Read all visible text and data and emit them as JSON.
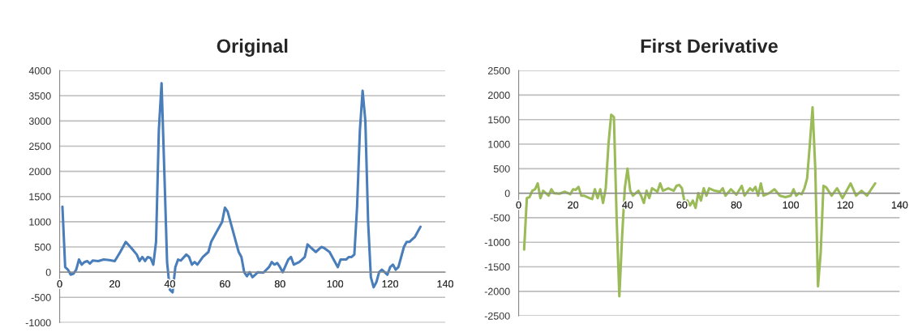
{
  "chart_data": [
    {
      "type": "line",
      "title": "Original",
      "color": "#4a7ebb",
      "grid": "y",
      "xlim": [
        0,
        140
      ],
      "xticks": [
        0,
        20,
        40,
        60,
        80,
        100,
        120,
        140
      ],
      "ylim": [
        -1000,
        4000
      ],
      "yticks": [
        -1000,
        -500,
        0,
        500,
        1000,
        1500,
        2000,
        2500,
        3000,
        3500,
        4000
      ],
      "x": [
        1,
        2,
        3,
        4,
        5,
        6,
        7,
        8,
        9,
        10,
        11,
        12,
        14,
        16,
        18,
        20,
        22,
        24,
        26,
        28,
        29,
        30,
        31,
        32,
        33,
        34,
        35,
        36,
        37,
        38,
        39,
        40,
        41,
        42,
        43,
        44,
        46,
        47,
        48,
        49,
        50,
        52,
        54,
        55,
        57,
        59,
        60,
        61,
        63,
        64,
        65,
        66,
        67,
        68,
        69,
        70,
        71,
        72,
        74,
        76,
        77,
        78,
        79,
        80,
        81,
        83,
        84,
        85,
        87,
        88,
        89,
        90,
        91,
        93,
        95,
        96,
        98,
        100,
        101,
        102,
        104,
        105,
        106,
        107,
        108,
        109,
        110,
        111,
        112,
        113,
        114,
        115,
        116,
        117,
        118,
        119,
        120,
        121,
        122,
        123,
        124,
        125,
        126,
        127,
        128,
        129,
        130,
        131
      ],
      "values": [
        1300,
        100,
        50,
        -50,
        -30,
        50,
        250,
        150,
        200,
        220,
        170,
        230,
        220,
        250,
        240,
        220,
        400,
        600,
        480,
        350,
        220,
        300,
        220,
        300,
        280,
        150,
        600,
        2800,
        3750,
        2000,
        200,
        -350,
        -400,
        100,
        250,
        230,
        350,
        300,
        150,
        200,
        150,
        300,
        400,
        600,
        800,
        1000,
        1280,
        1200,
        800,
        600,
        400,
        300,
        0,
        -80,
        0,
        -100,
        -50,
        0,
        -10,
        100,
        200,
        150,
        180,
        100,
        0,
        250,
        300,
        150,
        200,
        250,
        300,
        550,
        500,
        400,
        500,
        480,
        400,
        200,
        100,
        250,
        250,
        300,
        300,
        350,
        1300,
        2800,
        3600,
        3000,
        1000,
        -100,
        -300,
        -200,
        0,
        50,
        0,
        -50,
        100,
        150,
        50,
        100,
        300,
        500,
        600,
        600,
        650,
        700,
        800,
        900
      ]
    },
    {
      "type": "line",
      "title": "First Derivative",
      "color": "#9bbb59",
      "grid": "y",
      "xlim": [
        0,
        140
      ],
      "xticks": [
        0,
        20,
        40,
        60,
        80,
        100,
        120,
        140
      ],
      "ylim": [
        -2500,
        2500
      ],
      "yticks": [
        -2500,
        -2000,
        -1500,
        -1000,
        -500,
        0,
        500,
        1000,
        1500,
        2000,
        2500
      ],
      "x": [
        2,
        3,
        4,
        5,
        6,
        7,
        8,
        9,
        10,
        11,
        12,
        13,
        15,
        17,
        19,
        20,
        21,
        22,
        23,
        24,
        26,
        27,
        28,
        29,
        30,
        31,
        32,
        33,
        34,
        35,
        36,
        37,
        38,
        39,
        40,
        41,
        42,
        44,
        45,
        46,
        47,
        48,
        49,
        51,
        52,
        53,
        55,
        57,
        58,
        59,
        60,
        61,
        62,
        63,
        64,
        65,
        66,
        67,
        68,
        69,
        70,
        72,
        74,
        75,
        76,
        78,
        80,
        82,
        83,
        85,
        86,
        87,
        88,
        89,
        90,
        92,
        94,
        96,
        98,
        100,
        101,
        102,
        103,
        104,
        105,
        106,
        107,
        108,
        109,
        110,
        111,
        112,
        113,
        115,
        117,
        119,
        120,
        122,
        124,
        126,
        128,
        131
      ],
      "values": [
        -1150,
        -100,
        -80,
        50,
        80,
        200,
        -100,
        50,
        0,
        -50,
        80,
        0,
        -10,
        30,
        -20,
        80,
        70,
        130,
        -50,
        -50,
        -100,
        -120,
        80,
        -100,
        80,
        -200,
        100,
        1000,
        1600,
        1550,
        -500,
        -2100,
        -900,
        100,
        500,
        50,
        -50,
        50,
        -50,
        -200,
        50,
        -100,
        100,
        30,
        200,
        50,
        100,
        50,
        150,
        170,
        100,
        -200,
        -150,
        -250,
        -150,
        -300,
        0,
        -150,
        100,
        -50,
        100,
        50,
        30,
        100,
        -50,
        80,
        -30,
        150,
        -50,
        100,
        50,
        130,
        -50,
        200,
        -50,
        0,
        80,
        -50,
        -80,
        -50,
        80,
        -50,
        0,
        -20,
        100,
        300,
        1000,
        1750,
        500,
        -1900,
        -1200,
        150,
        120,
        -50,
        100,
        -100,
        0,
        200,
        -50,
        50,
        -50,
        200
      ]
    }
  ]
}
